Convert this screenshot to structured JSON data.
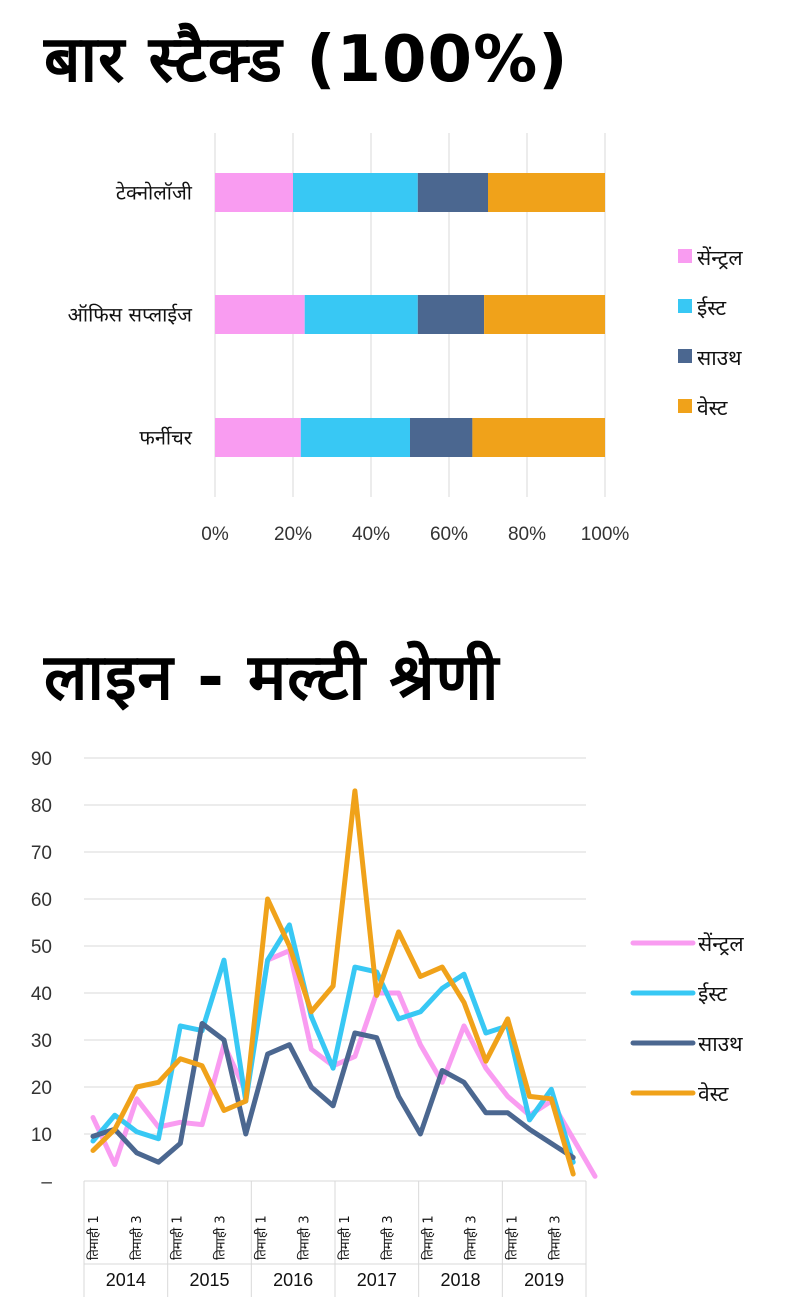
{
  "title_top": "बार स्टैक्ड (100%)",
  "title_bottom": "लाइन - मल्टी श्रेणी",
  "chart_data": [
    {
      "type": "bar",
      "orientation": "horizontal",
      "stacked_percent": true,
      "categories": [
        "टेक्नोलॉजी",
        "ऑफिस सप्लाईज",
        "फर्नीचर"
      ],
      "series": [
        {
          "name": "सेंन्ट्रल",
          "color": "#f99cf1",
          "values": [
            20,
            23,
            22
          ]
        },
        {
          "name": "ईस्ट",
          "color": "#38c8f4",
          "values": [
            32,
            29,
            28
          ]
        },
        {
          "name": "साउथ",
          "color": "#4b6790",
          "values": [
            18,
            17,
            16
          ]
        },
        {
          "name": "वेस्ट",
          "color": "#f0a21a",
          "values": [
            30,
            31,
            34
          ]
        }
      ],
      "xticks": [
        "0%",
        "20%",
        "40%",
        "60%",
        "80%",
        "100%"
      ],
      "xlim": [
        0,
        100
      ],
      "grid": true,
      "legend": "right"
    },
    {
      "type": "line",
      "x_tick_labels": [
        "तिमाही 1",
        "तिमाही 3"
      ],
      "years": [
        "2014",
        "2015",
        "2016",
        "2017",
        "2018",
        "2019"
      ],
      "points_per_year": 4,
      "yticks": [
        "–",
        "10",
        "20",
        "30",
        "40",
        "50",
        "60",
        "70",
        "80",
        "90"
      ],
      "ylim": [
        0,
        90
      ],
      "grid": true,
      "legend": "right",
      "series": [
        {
          "name": "सेंन्ट्रल",
          "color": "#f99cf1",
          "values": [
            13.5,
            3.5,
            17.5,
            11.5,
            12.5,
            12,
            29,
            19,
            47,
            49,
            28,
            24.5,
            26.5,
            40,
            40,
            29,
            21,
            33,
            24,
            18,
            14,
            17,
            9,
            1
          ]
        },
        {
          "name": "ईस्ट",
          "color": "#38c8f4",
          "values": [
            8.5,
            14,
            10.5,
            9,
            33,
            32,
            47,
            17,
            47,
            54.5,
            35,
            24,
            45.5,
            44.5,
            34.5,
            36,
            41,
            44,
            31.5,
            33,
            13,
            19.5,
            4
          ]
        },
        {
          "name": "साउथ",
          "color": "#4b6790",
          "values": [
            9.5,
            11,
            6,
            4,
            8,
            33.5,
            30,
            10,
            27,
            29,
            20,
            16,
            31.5,
            30.5,
            18,
            10,
            23.5,
            21,
            14.5,
            14.5,
            11,
            8,
            5
          ]
        },
        {
          "name": "वेस्ट",
          "color": "#f0a21a",
          "values": [
            6.5,
            11,
            20,
            21,
            26,
            24.5,
            15,
            17,
            60,
            50,
            36,
            41.5,
            83,
            39.5,
            53,
            43.5,
            45.5,
            38,
            25.5,
            34.5,
            18,
            17.5,
            1.5
          ]
        }
      ]
    }
  ]
}
